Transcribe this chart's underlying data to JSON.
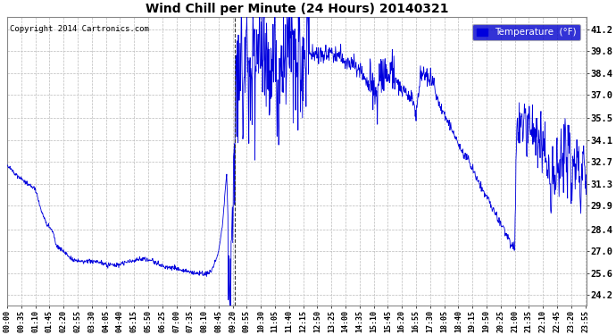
{
  "title": "Wind Chill per Minute (24 Hours) 20140321",
  "copyright_text": "Copyright 2014 Cartronics.com",
  "legend_label": "Temperature  (°F)",
  "background_color": "#ffffff",
  "plot_bg_color": "#ffffff",
  "grid_color": "#bbbbbb",
  "line_color": "#0000dd",
  "legend_bg": "#0000cc",
  "legend_text": "#ffffff",
  "yticks": [
    24.2,
    25.6,
    27.0,
    28.4,
    29.9,
    31.3,
    32.7,
    34.1,
    35.5,
    37.0,
    38.4,
    39.8,
    41.2
  ],
  "ymin": 23.5,
  "ymax": 42.0,
  "total_minutes": 1440,
  "dashed_vline_minute": 565,
  "xtick_labels": [
    "00:00",
    "00:35",
    "01:10",
    "01:45",
    "02:20",
    "02:55",
    "03:30",
    "04:05",
    "04:40",
    "05:15",
    "05:50",
    "06:25",
    "07:00",
    "07:35",
    "08:10",
    "08:45",
    "09:20",
    "09:55",
    "10:30",
    "11:05",
    "11:40",
    "12:15",
    "12:50",
    "13:25",
    "14:00",
    "14:35",
    "15:10",
    "15:45",
    "16:20",
    "16:55",
    "17:30",
    "18:05",
    "18:40",
    "19:15",
    "19:50",
    "20:25",
    "21:00",
    "21:35",
    "22:10",
    "22:45",
    "23:20",
    "23:55"
  ],
  "xtick_minutes": [
    0,
    35,
    70,
    105,
    140,
    175,
    210,
    245,
    280,
    315,
    350,
    385,
    420,
    455,
    490,
    525,
    560,
    595,
    630,
    665,
    700,
    735,
    770,
    805,
    840,
    875,
    910,
    945,
    980,
    1015,
    1050,
    1085,
    1120,
    1155,
    1190,
    1225,
    1260,
    1295,
    1330,
    1365,
    1400,
    1435
  ],
  "keypoints": [
    [
      0,
      32.5
    ],
    [
      20,
      32.0
    ],
    [
      50,
      31.3
    ],
    [
      70,
      31.0
    ],
    [
      80,
      30.0
    ],
    [
      90,
      29.2
    ],
    [
      100,
      28.7
    ],
    [
      115,
      28.2
    ],
    [
      120,
      27.5
    ],
    [
      130,
      27.2
    ],
    [
      140,
      27.0
    ],
    [
      160,
      26.5
    ],
    [
      190,
      26.3
    ],
    [
      220,
      26.4
    ],
    [
      240,
      26.2
    ],
    [
      270,
      26.1
    ],
    [
      300,
      26.3
    ],
    [
      330,
      26.5
    ],
    [
      360,
      26.4
    ],
    [
      390,
      26.0
    ],
    [
      420,
      25.9
    ],
    [
      450,
      25.7
    ],
    [
      475,
      25.6
    ],
    [
      490,
      25.55
    ],
    [
      505,
      25.7
    ],
    [
      515,
      26.2
    ],
    [
      525,
      27.0
    ],
    [
      535,
      28.8
    ],
    [
      540,
      30.5
    ],
    [
      545,
      32.0
    ],
    [
      548,
      29.0
    ],
    [
      551,
      24.5
    ],
    [
      553,
      24.2
    ],
    [
      555,
      25.5
    ],
    [
      557,
      27.0
    ],
    [
      560,
      29.5
    ],
    [
      563,
      32.0
    ],
    [
      565,
      34.5
    ],
    [
      568,
      36.5
    ],
    [
      572,
      39.0
    ],
    [
      575,
      40.5
    ],
    [
      578,
      37.5
    ],
    [
      582,
      39.8
    ],
    [
      586,
      36.0
    ],
    [
      590,
      38.5
    ],
    [
      595,
      40.2
    ],
    [
      600,
      37.5
    ],
    [
      605,
      39.5
    ],
    [
      612,
      40.8
    ],
    [
      618,
      37.0
    ],
    [
      625,
      40.0
    ],
    [
      630,
      38.5
    ],
    [
      640,
      40.5
    ],
    [
      650,
      37.5
    ],
    [
      660,
      39.5
    ],
    [
      670,
      36.5
    ],
    [
      680,
      38.8
    ],
    [
      690,
      40.0
    ],
    [
      700,
      39.5
    ],
    [
      720,
      39.8
    ],
    [
      740,
      40.0
    ],
    [
      760,
      39.5
    ],
    [
      780,
      39.6
    ],
    [
      800,
      39.8
    ],
    [
      810,
      39.5
    ],
    [
      820,
      39.7
    ],
    [
      830,
      39.4
    ],
    [
      840,
      39.3
    ],
    [
      850,
      39.0
    ],
    [
      860,
      38.9
    ],
    [
      870,
      38.6
    ],
    [
      880,
      38.3
    ],
    [
      890,
      38.0
    ],
    [
      900,
      37.5
    ],
    [
      910,
      37.0
    ],
    [
      920,
      36.8
    ],
    [
      925,
      38.5
    ],
    [
      930,
      38.2
    ],
    [
      940,
      38.4
    ],
    [
      950,
      38.2
    ],
    [
      960,
      38.0
    ],
    [
      970,
      37.7
    ],
    [
      980,
      37.4
    ],
    [
      990,
      37.1
    ],
    [
      1000,
      36.8
    ],
    [
      1010,
      36.4
    ],
    [
      1015,
      36.0
    ],
    [
      1020,
      37.0
    ],
    [
      1025,
      38.4
    ],
    [
      1030,
      38.3
    ],
    [
      1040,
      38.2
    ],
    [
      1050,
      38.0
    ],
    [
      1060,
      37.8
    ],
    [
      1065,
      37.0
    ],
    [
      1070,
      36.5
    ],
    [
      1075,
      36.3
    ],
    [
      1080,
      36.1
    ],
    [
      1085,
      35.8
    ],
    [
      1090,
      35.5
    ],
    [
      1095,
      35.2
    ],
    [
      1100,
      34.9
    ],
    [
      1110,
      34.5
    ],
    [
      1120,
      33.8
    ],
    [
      1130,
      33.4
    ],
    [
      1140,
      33.0
    ],
    [
      1150,
      32.5
    ],
    [
      1160,
      32.0
    ],
    [
      1170,
      31.5
    ],
    [
      1180,
      31.0
    ],
    [
      1190,
      30.5
    ],
    [
      1200,
      30.0
    ],
    [
      1210,
      29.5
    ],
    [
      1220,
      29.0
    ],
    [
      1230,
      28.5
    ],
    [
      1240,
      28.0
    ],
    [
      1250,
      27.5
    ],
    [
      1260,
      27.2
    ],
    [
      1265,
      35.5
    ],
    [
      1270,
      34.0
    ],
    [
      1275,
      35.2
    ],
    [
      1280,
      34.5
    ],
    [
      1285,
      35.5
    ],
    [
      1290,
      34.0
    ],
    [
      1295,
      35.0
    ],
    [
      1300,
      34.5
    ],
    [
      1305,
      35.2
    ],
    [
      1310,
      34.0
    ],
    [
      1315,
      35.0
    ],
    [
      1320,
      33.5
    ],
    [
      1325,
      34.5
    ],
    [
      1330,
      32.5
    ],
    [
      1335,
      34.2
    ],
    [
      1340,
      31.5
    ],
    [
      1345,
      33.5
    ],
    [
      1350,
      30.5
    ],
    [
      1355,
      32.5
    ],
    [
      1360,
      30.5
    ],
    [
      1365,
      34.0
    ],
    [
      1370,
      31.0
    ],
    [
      1375,
      34.5
    ],
    [
      1380,
      32.0
    ],
    [
      1385,
      34.5
    ],
    [
      1390,
      32.0
    ],
    [
      1395,
      34.0
    ],
    [
      1400,
      31.0
    ],
    [
      1405,
      33.5
    ],
    [
      1410,
      31.0
    ],
    [
      1415,
      34.0
    ],
    [
      1420,
      32.0
    ],
    [
      1425,
      30.0
    ],
    [
      1430,
      33.5
    ],
    [
      1435,
      31.5
    ],
    [
      1439,
      32.5
    ]
  ]
}
